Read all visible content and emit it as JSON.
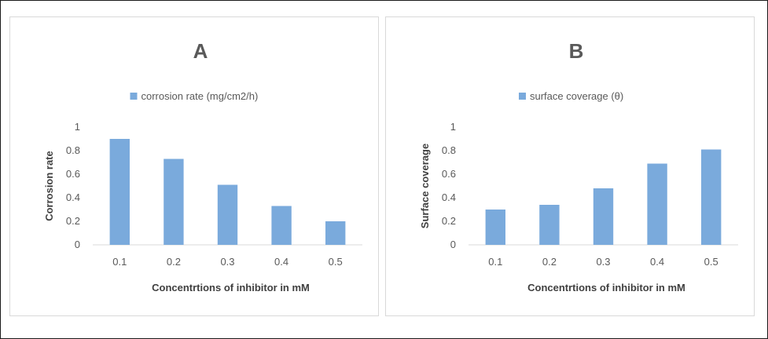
{
  "chart_data": [
    {
      "type": "bar",
      "title": "A",
      "legend": "corrosion rate (mg/cm2/h)",
      "legend_position": "top",
      "categories": [
        "0.1",
        "0.2",
        "0.3",
        "0.4",
        "0.5"
      ],
      "series": [
        {
          "name": "corrosion rate (mg/cm2/h)",
          "values": [
            0.9,
            0.73,
            0.51,
            0.33,
            0.2
          ]
        }
      ],
      "xlabel": "Concentrtions of inhibitor in mM",
      "ylabel": "Corrosion rate",
      "ylim": [
        0,
        1
      ],
      "yticks": [
        "0",
        "0.2",
        "0.4",
        "0.6",
        "0.8",
        "1"
      ],
      "grid": false,
      "color": "#7aaadc"
    },
    {
      "type": "bar",
      "title": "B",
      "legend": "surface coverage (θ)",
      "legend_position": "top",
      "categories": [
        "0.1",
        "0.2",
        "0.3",
        "0.4",
        "0.5"
      ],
      "series": [
        {
          "name": "surface coverage (θ)",
          "values": [
            0.3,
            0.34,
            0.48,
            0.69,
            0.81
          ]
        }
      ],
      "xlabel": "Concentrtions of inhibitor in mM",
      "ylabel": "Surface coverage",
      "ylim": [
        0,
        1
      ],
      "yticks": [
        "0",
        "0.2",
        "0.4",
        "0.6",
        "0.8",
        "1"
      ],
      "grid": false,
      "color": "#7aaadc"
    }
  ]
}
